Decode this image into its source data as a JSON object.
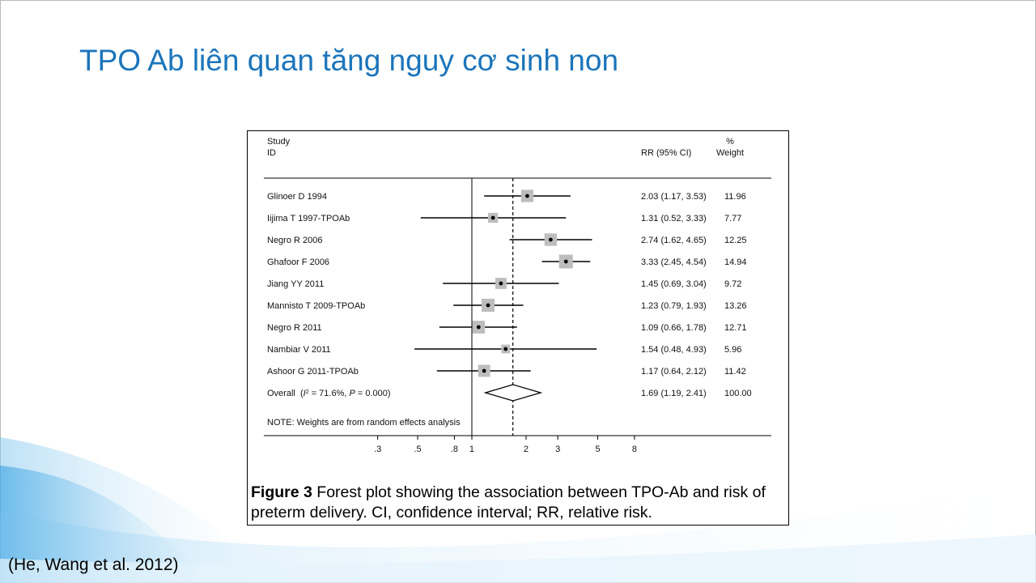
{
  "title": "TPO Ab liên quan tăng nguy cơ sinh non",
  "citation": "(He, Wang et al. 2012)",
  "chart_data": {
    "type": "forest",
    "headers": {
      "study": "Study",
      "id": "ID",
      "estimate": "RR (95% CI)",
      "percent": "%",
      "weight": "Weight"
    },
    "categories": [
      "Glinoer D 1994",
      "Iijima T 1997-TPOAb",
      "Negro R 2006",
      "Ghafoor F 2006",
      "Jiang YY 2011",
      "Mannisto T 2009-TPOAb",
      "Negro R 2011",
      "Nambiar V 2011",
      "Ashoor G 2011-TPOAb"
    ],
    "values": [
      2.03,
      1.31,
      2.74,
      3.33,
      1.45,
      1.23,
      1.09,
      1.54,
      1.17
    ],
    "lower": [
      1.17,
      0.52,
      1.62,
      2.45,
      0.69,
      0.79,
      0.66,
      0.48,
      0.64
    ],
    "upper": [
      3.53,
      3.33,
      4.65,
      4.54,
      3.04,
      1.93,
      1.78,
      4.93,
      2.12
    ],
    "value_labels": [
      "2.03 (1.17, 3.53)",
      "1.31 (0.52, 3.33)",
      "2.74 (1.62, 4.65)",
      "3.33 (2.45, 4.54)",
      "1.45 (0.69, 3.04)",
      "1.23 (0.79, 1.93)",
      "1.09 (0.66, 1.78)",
      "1.54 (0.48, 4.93)",
      "1.17 (0.64, 2.12)"
    ],
    "weights": [
      11.96,
      7.77,
      12.25,
      14.94,
      9.72,
      13.26,
      12.71,
      5.96,
      11.42
    ],
    "overall": {
      "name": "Overall",
      "heterogeneity": [
        "(",
        "I",
        "2",
        " = 71.6%, ",
        "P",
        " = 0.000)"
      ],
      "value": 1.69,
      "lower": 1.19,
      "upper": 2.41,
      "value_label": "1.69 (1.19, 2.41)",
      "weight": {
        "value": 100,
        "label": "100.00"
      }
    },
    "note": "NOTE: Weights are from random effects analysis",
    "log_scale": true,
    "xlim": [
      0.07,
      46
    ],
    "xticks": [
      {
        "value": 0.3,
        "label": ".3"
      },
      {
        "value": 0.5,
        "label": ".5"
      },
      {
        "value": 0.8,
        "label": ".8"
      },
      1,
      2,
      3,
      5,
      8
    ],
    "null_value": 1,
    "marker_color": "#bdbdbd",
    "caption_label": "Figure 3",
    "caption": "Forest plot showing the association between TPO-Ab and risk of preterm delivery. CI, confidence interval; RR, relative risk."
  }
}
